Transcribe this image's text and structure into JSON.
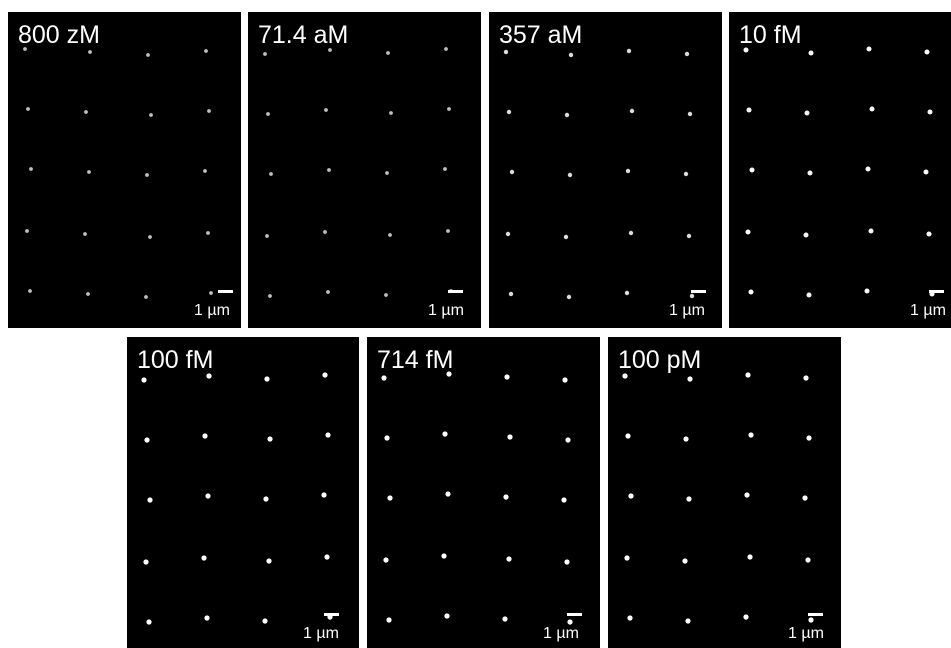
{
  "panels": [
    {
      "concentration": "800 zM",
      "scale_label": "1 µm",
      "brightness": 0.55
    },
    {
      "concentration": "71.4 aM",
      "scale_label": "1 µm",
      "brightness": 0.55
    },
    {
      "concentration": "357 aM",
      "scale_label": "1 µm",
      "brightness": 0.75
    },
    {
      "concentration": "10 fM",
      "scale_label": "1 µm",
      "brightness": 0.95
    },
    {
      "concentration": "100 fM",
      "scale_label": "1 µm",
      "brightness": 1.0
    },
    {
      "concentration": "714 fM",
      "scale_label": "1 µm",
      "brightness": 1.0
    },
    {
      "concentration": "100 pM",
      "scale_label": "1 µm",
      "brightness": 1.0
    }
  ],
  "colors": {
    "background": "#000000",
    "foreground": "#ffffff",
    "page": "#ffffff"
  }
}
